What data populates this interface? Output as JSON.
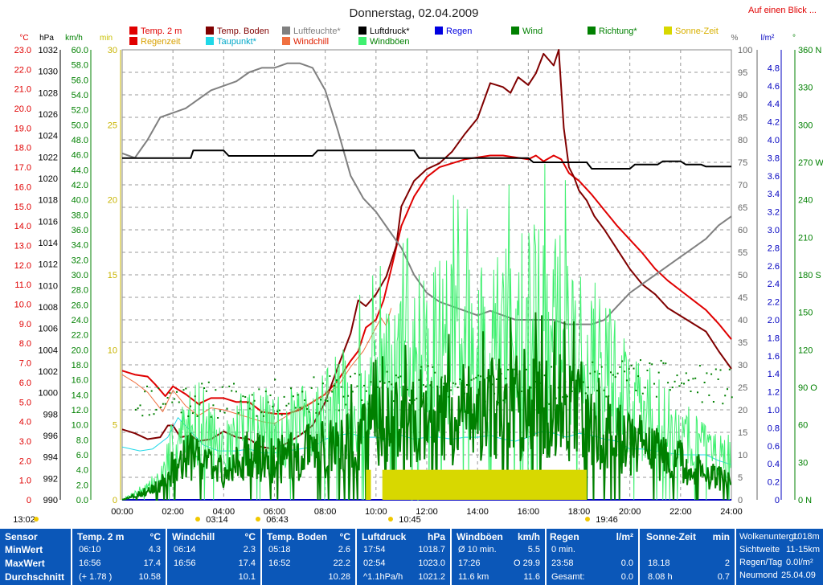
{
  "title": "Donnerstag, 02.04.2009",
  "link": "Auf einen Blick ...",
  "legend": [
    {
      "label": "Temp. 2 m",
      "color": "#e00000",
      "text": "#e00000"
    },
    {
      "label": "Regenzeit",
      "color": "#e00000",
      "text": "#d8a000"
    },
    {
      "label": "Temp. Boden",
      "color": "#800000",
      "text": "#800000"
    },
    {
      "label": "Taupunkt*",
      "color": "#20d8e8",
      "text": "#00a8c8"
    },
    {
      "label": "Luftfeuchte*",
      "color": "#808080",
      "text": "#808080"
    },
    {
      "label": "Windchill",
      "color": "#f07040",
      "text": "#e02000"
    },
    {
      "label": "Luftdruck*",
      "color": "#000000",
      "text": "#000000"
    },
    {
      "label": "Windböen",
      "color": "#40f070",
      "text": "#008000"
    },
    {
      "label": "Regen",
      "color": "#0000e0",
      "text": "#0000e0"
    },
    {
      "label": "Wind",
      "color": "#008000",
      "text": "#008000"
    },
    {
      "label": "Richtung*",
      "color": "#008000",
      "text": "#008000"
    },
    {
      "label": "Sonne-Zeit",
      "color": "#d8d800",
      "text": "#d8b000"
    }
  ],
  "axis_units": {
    "temp": "°C",
    "hpa": "hPa",
    "kmh": "km/h",
    "min": "min",
    "pct": "%",
    "rain": "l/m²",
    "dir": "°"
  },
  "sun_events": [
    "13:02",
    "03:14",
    "06:43",
    "10:45",
    "19:46"
  ],
  "chart_data": {
    "type": "line",
    "title": "Donnerstag, 02.04.2009",
    "x_ticks": [
      "00:00",
      "02:00",
      "04:00",
      "06:00",
      "08:00",
      "10:00",
      "12:00",
      "14:00",
      "16:00",
      "18:00",
      "20:00",
      "22:00",
      "24:00"
    ],
    "xlim": [
      0,
      24
    ],
    "axes": {
      "temp": {
        "ylim": [
          0,
          23
        ],
        "ticks": [
          "0",
          "1.0",
          "2.0",
          "3.0",
          "4.0",
          "5.0",
          "6.0",
          "7.0",
          "8.0",
          "9.0",
          "10.0",
          "11.0",
          "12.0",
          "13.0",
          "14.0",
          "15.0",
          "16.0",
          "17.0",
          "18.0",
          "19.0",
          "20.0",
          "21.0",
          "22.0",
          "23.0"
        ]
      },
      "hpa": {
        "ylim": [
          990,
          1032
        ],
        "ticks": [
          "990",
          "992",
          "994",
          "996",
          "998",
          "1000",
          "1002",
          "1004",
          "1006",
          "1008",
          "1010",
          "1012",
          "1014",
          "1016",
          "1018",
          "1020",
          "1022",
          "1024",
          "1026",
          "1028",
          "1030",
          "1032"
        ]
      },
      "kmh": {
        "ylim": [
          0,
          60
        ],
        "ticks": [
          "0.0",
          "2.0",
          "4.0",
          "6.0",
          "8.0",
          "10.0",
          "12.0",
          "14.0",
          "16.0",
          "18.0",
          "20.0",
          "22.0",
          "24.0",
          "26.0",
          "28.0",
          "30.0",
          "32.0",
          "34.0",
          "36.0",
          "38.0",
          "40.0",
          "42.0",
          "44.0",
          "46.0",
          "48.0",
          "50.0",
          "52.0",
          "54.0",
          "56.0",
          "58.0",
          "60.0"
        ]
      },
      "min": {
        "ylim": [
          0,
          30
        ],
        "ticks": [
          "0",
          "5",
          "10",
          "15",
          "20",
          "25",
          "30"
        ]
      },
      "pct": {
        "ylim": [
          0,
          100
        ],
        "ticks": [
          "0",
          "5",
          "10",
          "15",
          "20",
          "25",
          "30",
          "35",
          "40",
          "45",
          "50",
          "55",
          "60",
          "65",
          "70",
          "75",
          "80",
          "85",
          "90",
          "95",
          "100"
        ]
      },
      "rain": {
        "ylim": [
          0,
          5
        ],
        "ticks": [
          "0",
          "0.2",
          "0.4",
          "0.6",
          "0.8",
          "1.0",
          "1.2",
          "1.4",
          "1.6",
          "1.8",
          "2.0",
          "2.2",
          "2.4",
          "2.6",
          "2.8",
          "3.0",
          "3.2",
          "3.4",
          "3.6",
          "3.8",
          "4.0",
          "4.2",
          "4.4",
          "4.6",
          "4.8"
        ]
      },
      "dir": {
        "ylim": [
          0,
          360
        ],
        "ticks": [
          {
            "v": 0,
            "t": "0   N"
          },
          {
            "v": 30,
            "t": "30"
          },
          {
            "v": 60,
            "t": "60"
          },
          {
            "v": 90,
            "t": "90  O"
          },
          {
            "v": 120,
            "t": "120"
          },
          {
            "v": 150,
            "t": "150"
          },
          {
            "v": 180,
            "t": "180 S"
          },
          {
            "v": 210,
            "t": "210"
          },
          {
            "v": 240,
            "t": "240"
          },
          {
            "v": 270,
            "t": "270 W"
          },
          {
            "v": 300,
            "t": "300"
          },
          {
            "v": 330,
            "t": "330"
          },
          {
            "v": 360,
            "t": "360 N"
          }
        ]
      }
    },
    "series": [
      {
        "name": "Temp. 2 m",
        "axis": "temp",
        "color": "#e00000",
        "width": 2,
        "x": [
          0,
          0.5,
          1,
          1.3,
          1.7,
          2,
          2.5,
          3,
          3.5,
          4,
          4.5,
          5,
          5.5,
          6,
          6.5,
          7,
          7.5,
          8,
          8.5,
          9,
          9.3,
          9.6,
          10,
          10.3,
          10.6,
          11,
          11.5,
          12,
          12.5,
          13,
          13.5,
          14,
          14.5,
          15,
          15.5,
          16,
          16.3,
          16.6,
          17,
          17.3,
          17.6,
          18,
          18.5,
          19,
          19.5,
          20,
          20.5,
          21,
          21.5,
          22,
          22.5,
          23,
          23.5,
          24
        ],
        "y": [
          6.6,
          6.4,
          6.3,
          5.9,
          5.3,
          5.8,
          5.4,
          4.9,
          5.2,
          5.2,
          5.0,
          5.0,
          4.5,
          4.4,
          4.4,
          4.6,
          5.0,
          5.4,
          6.1,
          7.1,
          7.6,
          8.8,
          9.2,
          10.2,
          11.8,
          14.0,
          15.5,
          16.5,
          17.0,
          17.2,
          17.4,
          17.5,
          17.6,
          17.6,
          17.5,
          17.4,
          17.6,
          17.3,
          17.6,
          17.4,
          16.7,
          16.3,
          15.6,
          14.8,
          14.0,
          13.3,
          12.6,
          11.8,
          11.2,
          10.7,
          10.2,
          9.7,
          9.0,
          8.2
        ]
      },
      {
        "name": "Temp. Boden",
        "axis": "temp",
        "color": "#800000",
        "width": 2,
        "x": [
          0,
          0.5,
          1,
          1.5,
          1.8,
          2,
          2.3,
          2.7,
          3,
          3.5,
          4,
          4.5,
          5,
          5.5,
          6,
          6.5,
          7,
          7.5,
          8,
          8.5,
          9,
          9.3,
          9.6,
          10,
          10.4,
          10.8,
          11,
          11.5,
          12,
          12.5,
          13,
          13.5,
          14,
          14.5,
          15,
          15.3,
          15.6,
          16,
          16.3,
          16.6,
          17,
          17.2,
          17.4,
          17.6,
          17.8,
          18,
          18.3,
          18.6,
          19,
          19.5,
          20,
          20.5,
          21,
          21.5,
          22,
          22.5,
          23,
          23.5,
          24
        ],
        "y": [
          3.6,
          3.4,
          3.1,
          3.2,
          3.8,
          3.8,
          3.2,
          3.3,
          3.0,
          3.1,
          3.5,
          3.2,
          3.1,
          2.7,
          2.6,
          2.9,
          3.3,
          3.8,
          5.0,
          6.8,
          8.5,
          10.2,
          9.9,
          10.5,
          11.4,
          13.0,
          15.0,
          16.3,
          16.9,
          17.2,
          17.8,
          18.7,
          19.5,
          21.3,
          21.1,
          20.8,
          21.6,
          21.2,
          21.8,
          22.8,
          22.2,
          23.0,
          19.0,
          17.0,
          16.5,
          15.8,
          15.3,
          14.5,
          13.8,
          12.8,
          11.8,
          11.0,
          10.5,
          9.8,
          9.4,
          9.0,
          8.6,
          7.6,
          6.7
        ]
      },
      {
        "name": "Taupunkt*",
        "axis": "temp",
        "color": "#20d8e8",
        "width": 1,
        "x": [
          0,
          0.7,
          1.2,
          1.8,
          2.2,
          2.7,
          3.2,
          3.8,
          4.5,
          5,
          5.5,
          6,
          6.5,
          7,
          7.5,
          8,
          8.5,
          9,
          9.5,
          10,
          10.5,
          11,
          11.5,
          12,
          12.5,
          13,
          13.5,
          14,
          14.5,
          15,
          15.5,
          16,
          16.5,
          17,
          17.5,
          18,
          18.5,
          19,
          19.5,
          20,
          20.5,
          21,
          21.5,
          22,
          22.5,
          23,
          23.5,
          24
        ],
        "y": [
          2.7,
          2.5,
          2.6,
          3.2,
          4.2,
          3.5,
          2.8,
          2.5,
          2.5,
          2.6,
          2.4,
          2.4,
          2.5,
          2.6,
          2.7,
          3.1,
          3.3,
          3.4,
          3.2,
          3.2,
          3.1,
          3.3,
          3.1,
          3.2,
          3.2,
          3.1,
          3.2,
          3.2,
          3.3,
          3.1,
          3.0,
          3.2,
          3.5,
          3.4,
          3.2,
          3.4,
          3.3,
          3.1,
          3.0,
          2.6,
          2.6,
          2.5,
          2.4,
          2.3,
          2.3,
          2.3,
          2.0,
          1.8
        ]
      },
      {
        "name": "Windchill",
        "axis": "temp",
        "color": "#f07040",
        "width": 1,
        "x": [
          0,
          0.5,
          1,
          1.3,
          1.6,
          2,
          2.5,
          3,
          3.5,
          4,
          4.5,
          5,
          5.5,
          6,
          6.5,
          7,
          7.5,
          8,
          8.5,
          9,
          9.5,
          10,
          10.2,
          10.4,
          10.6
        ],
        "y": [
          6.4,
          6.0,
          5.5,
          5.0,
          4.5,
          5.6,
          4.8,
          4.3,
          4.7,
          4.6,
          4.4,
          4.2,
          4.0,
          3.9,
          4.3,
          4.7,
          5.0,
          5.4,
          5.8,
          6.8,
          7.6,
          8.8,
          9.3,
          8.9,
          9.8
        ]
      },
      {
        "name": "Luftfeuchte*",
        "axis": "pct",
        "color": "#808080",
        "width": 2,
        "x": [
          0,
          0.5,
          1,
          1.5,
          2,
          2.5,
          3,
          3.5,
          4,
          4.5,
          5,
          5.5,
          6,
          6.5,
          7,
          7.5,
          8,
          8.5,
          9,
          9.5,
          10,
          10.5,
          11,
          11.5,
          12,
          12.5,
          13,
          13.5,
          14,
          14.5,
          15,
          15.5,
          16,
          16.5,
          17,
          17.5,
          18,
          18.5,
          19,
          19.5,
          20,
          20.5,
          21,
          21.5,
          22,
          22.5,
          23,
          23.5,
          24
        ],
        "y": [
          77,
          76,
          80,
          85,
          86,
          87,
          89,
          91,
          92,
          93,
          95,
          96,
          96,
          97,
          97,
          96,
          91,
          82,
          72,
          67,
          64,
          60,
          56,
          50,
          46,
          44,
          43,
          42,
          41,
          42,
          41,
          40,
          40,
          40,
          40,
          39,
          39,
          39,
          40,
          43,
          46,
          48,
          50,
          52,
          54,
          56,
          58,
          61,
          63
        ]
      },
      {
        "name": "Luftdruck*",
        "axis": "hpa",
        "color": "#000000",
        "width": 2,
        "x": [
          0,
          1.5,
          2.7,
          2.8,
          4,
          4.2,
          5.5,
          7.5,
          7.7,
          11.5,
          11.7,
          16,
          16.2,
          18.3,
          18.5,
          20,
          20.2,
          21.1,
          21.3,
          22,
          22.2,
          22.8,
          23,
          24
        ],
        "y": [
          1021.9,
          1021.9,
          1021.9,
          1022.6,
          1022.6,
          1022.1,
          1022.1,
          1022.1,
          1022.6,
          1022.6,
          1021.9,
          1021.9,
          1021.5,
          1021.5,
          1020.9,
          1020.9,
          1021.3,
          1021.3,
          1021.6,
          1021.6,
          1021.3,
          1021.3,
          1021.1,
          1021.1
        ]
      },
      {
        "name": "Windböen",
        "axis": "kmh",
        "color": "#40f070",
        "width": 1,
        "kind": "noise",
        "seed": 7,
        "x": [
          0,
          1.5,
          2,
          2.5,
          3,
          4,
          5,
          6,
          7,
          8,
          9,
          10,
          11,
          12,
          13,
          14,
          15,
          16,
          17,
          18,
          19,
          20,
          21,
          22,
          23,
          24
        ],
        "y": [
          0,
          3,
          8,
          10,
          12,
          7,
          12,
          10,
          11,
          13,
          15,
          18,
          20,
          22,
          24,
          22,
          24,
          27,
          26,
          24,
          20,
          15,
          12,
          10,
          8,
          6
        ]
      },
      {
        "name": "Wind",
        "axis": "kmh",
        "color": "#008000",
        "width": 2,
        "kind": "noise",
        "seed": 3,
        "x": [
          0,
          1.5,
          2,
          2.5,
          3,
          4,
          5,
          6,
          7,
          8,
          9,
          10,
          11,
          12,
          13,
          14,
          15,
          16,
          17,
          18,
          19,
          20,
          21,
          22,
          23,
          24
        ],
        "y": [
          0,
          2,
          5,
          6,
          7,
          4,
          7,
          6,
          7,
          8,
          9,
          11,
          12,
          13,
          13,
          13,
          14,
          15,
          14,
          14,
          11,
          9,
          7,
          6,
          4,
          3
        ]
      },
      {
        "name": "Richtung*",
        "axis": "dir",
        "color": "#008000",
        "kind": "dots",
        "seed": 11,
        "x": [
          0,
          2,
          4,
          6,
          8,
          10,
          12,
          14,
          16,
          18,
          20,
          22,
          24
        ],
        "y": [
          80,
          82,
          80,
          82,
          85,
          90,
          95,
          92,
          90,
          95,
          100,
          95,
          90
        ]
      },
      {
        "name": "Sonne-Zeit",
        "axis": "min",
        "color": "#d8d800",
        "kind": "bars",
        "bars": [
          {
            "x0": 9.6,
            "x1": 9.8,
            "y": 2.0
          },
          {
            "x0": 10.25,
            "x1": 18.3,
            "y": 2.0
          }
        ]
      }
    ]
  },
  "stats": {
    "header_sensor": "Sensor",
    "row_labels": [
      "MinWert",
      "MaxWert",
      "Durchschnitt"
    ],
    "blocks": [
      {
        "title": "Temp. 2 m",
        "unit": "°C",
        "rows": [
          [
            "06:10",
            "4.3"
          ],
          [
            "16:56",
            "17.4"
          ],
          [
            "(+ 1.78 )",
            "10.58"
          ]
        ]
      },
      {
        "title": "Windchill",
        "unit": "°C",
        "rows": [
          [
            "06:14",
            "2.3"
          ],
          [
            "16:56",
            "17.4"
          ],
          [
            "",
            "10.1"
          ]
        ]
      },
      {
        "title": "Temp. Boden",
        "unit": "°C",
        "rows": [
          [
            "05:18",
            "2.6"
          ],
          [
            "16:52",
            "22.2"
          ],
          [
            "",
            "10.28"
          ]
        ]
      },
      {
        "title": "Luftdruck",
        "unit": "hPa",
        "rows": [
          [
            "17:54",
            "1018.7"
          ],
          [
            "02:54",
            "1023.0"
          ],
          [
            "^1.1hPa/h",
            "1021.2"
          ]
        ]
      },
      {
        "title": "Windböen",
        "unit": "km/h",
        "rows": [
          [
            "Ø 10 min.",
            "5.5"
          ],
          [
            "17:26",
            "O 29.9"
          ],
          [
            "11.6 km",
            "11.6"
          ]
        ]
      },
      {
        "title": "Regen",
        "unit": "l/m²",
        "rows": [
          [
            "0 min.",
            ""
          ],
          [
            "23:58",
            "0.0"
          ],
          [
            "Gesamt:",
            "0.0"
          ]
        ]
      },
      {
        "title": "Sonne-Zeit",
        "unit": "min",
        "rows": [
          [
            "",
            ""
          ],
          [
            "18.18",
            "2"
          ],
          [
            "8.08 h",
            "0.7"
          ]
        ]
      }
    ],
    "extra": [
      [
        "Wolkenuntergr.",
        "1018m"
      ],
      [
        "Sichtweite",
        "11-15km"
      ],
      [
        "Regen/Tag",
        "0.0l/m²"
      ],
      [
        "Neumond",
        "25.04.09"
      ]
    ]
  }
}
